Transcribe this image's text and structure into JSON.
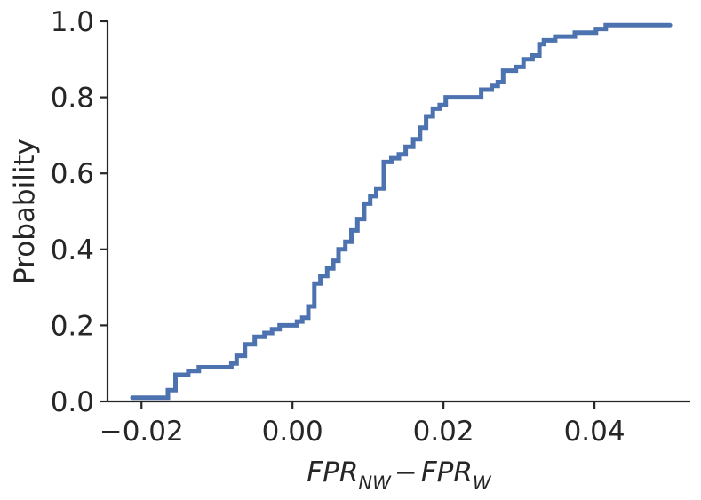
{
  "chart_data": {
    "type": "line",
    "subtype": "ecdf-step",
    "title": "",
    "xlabel": {
      "base1": "FP",
      "hat1": "R",
      "sub1": "NW",
      "minus": "−",
      "base2": "FP",
      "hat2": "R",
      "sub2": "W"
    },
    "ylabel": "Probability",
    "xlim": [
      -0.0245,
      0.0527
    ],
    "ylim": [
      0.0,
      1.0
    ],
    "x_ticks": [
      -0.02,
      0.0,
      0.02,
      0.04
    ],
    "x_tick_labels": [
      "−0.02",
      "0.00",
      "0.02",
      "0.04"
    ],
    "y_ticks": [
      0.0,
      0.2,
      0.4,
      0.6,
      0.8,
      1.0
    ],
    "y_tick_labels": [
      "0.0",
      "0.2",
      "0.4",
      "0.6",
      "0.8",
      "1.0"
    ],
    "grid": false,
    "legend": "none",
    "series": [
      {
        "color": "#4c72b0",
        "x": [
          -0.0212,
          -0.0165,
          -0.0155,
          -0.0138,
          -0.0124,
          -0.0081,
          -0.0074,
          -0.0063,
          -0.005,
          -0.0037,
          -0.0027,
          -0.0017,
          0.0,
          0.0006,
          0.0013,
          0.0021,
          0.0029,
          0.0037,
          0.0046,
          0.0054,
          0.0061,
          0.007,
          0.0078,
          0.0086,
          0.0095,
          0.0103,
          0.0111,
          0.0121,
          0.0131,
          0.0141,
          0.015,
          0.016,
          0.0169,
          0.0177,
          0.0186,
          0.0195,
          0.0203,
          0.0213,
          0.0227,
          0.025,
          0.0264,
          0.0272,
          0.0279,
          0.0296,
          0.0306,
          0.0318,
          0.0327,
          0.0333,
          0.0348,
          0.0362,
          0.0374,
          0.0402,
          0.0415,
          0.05
        ],
        "y": [
          0.01,
          0.03,
          0.07,
          0.08,
          0.09,
          0.1,
          0.12,
          0.15,
          0.17,
          0.18,
          0.19,
          0.2,
          0.2,
          0.21,
          0.22,
          0.25,
          0.31,
          0.33,
          0.35,
          0.37,
          0.4,
          0.42,
          0.45,
          0.48,
          0.52,
          0.54,
          0.56,
          0.63,
          0.64,
          0.65,
          0.67,
          0.69,
          0.72,
          0.75,
          0.77,
          0.78,
          0.8,
          0.8,
          0.8,
          0.82,
          0.83,
          0.84,
          0.87,
          0.88,
          0.9,
          0.91,
          0.94,
          0.95,
          0.96,
          0.96,
          0.97,
          0.98,
          0.99,
          0.99
        ]
      }
    ]
  }
}
